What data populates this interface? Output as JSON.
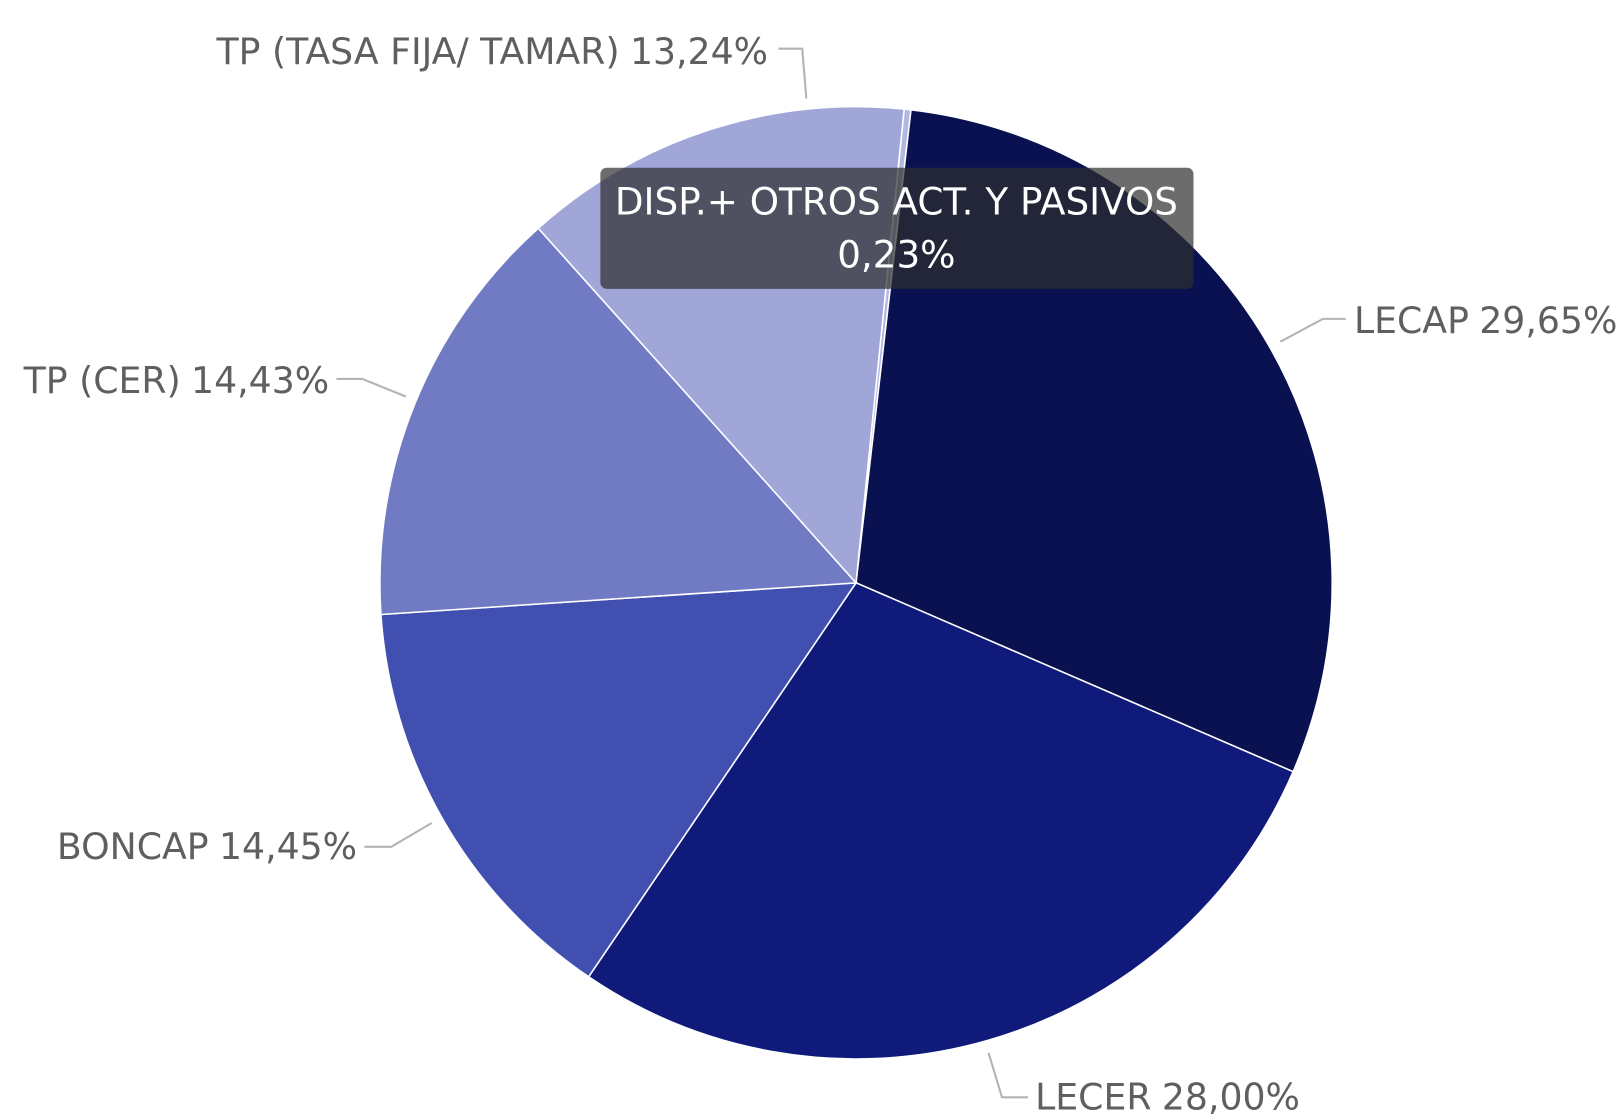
{
  "chart_data": {
    "type": "pie",
    "categories": [
      "DISP.+ OTROS ACT. Y PASIVOS",
      "LECAP",
      "LECER",
      "BONCAP",
      "TP (CER)",
      "TP (TASA FIJA/ TAMAR)"
    ],
    "values": [
      0.23,
      29.65,
      28.0,
      14.45,
      14.43,
      13.24
    ],
    "value_labels": [
      "0,23%",
      "29,65%",
      "28,00%",
      "14,45%",
      "14,43%",
      "13,24%"
    ],
    "colors": [
      "#b3b8e2",
      "#0a1150",
      "#0f1a7a",
      "#4150b0",
      "#717bc4",
      "#a0a6d8"
    ]
  }
}
